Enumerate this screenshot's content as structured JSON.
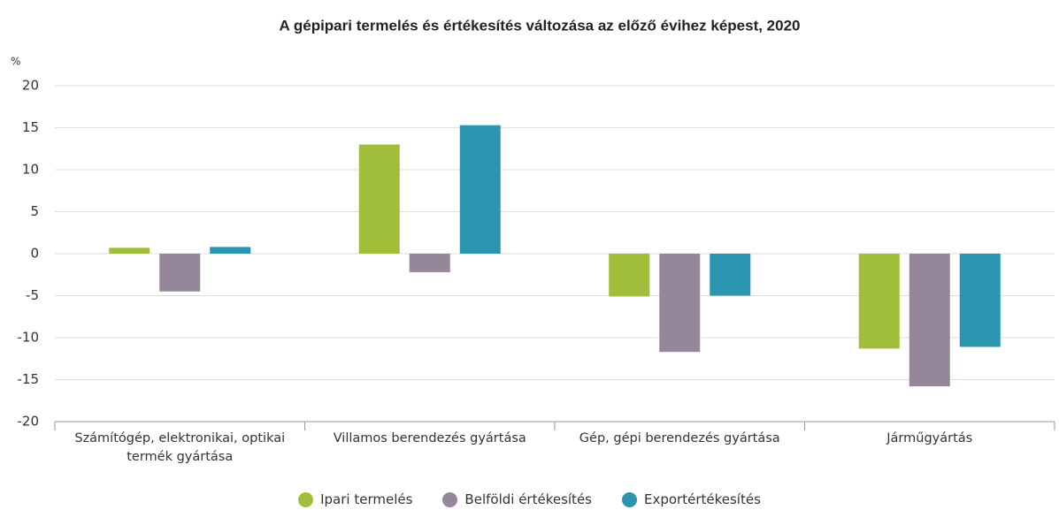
{
  "chart_data": {
    "type": "bar",
    "title": "A gépipari termelés és értékesítés változása az előző évihez képest, 2020",
    "y_label": "%",
    "categories": [
      "Számítógép, elektronikai, optikai termék gyártása",
      "Villamos berendezés gyártása",
      "Gép, gépi berendezés gyártása",
      "Járműgyártás"
    ],
    "series": [
      {
        "name": "Ipari termelés",
        "color": "#a0be3a",
        "values": [
          0.7,
          13.0,
          -5.1,
          -11.3
        ]
      },
      {
        "name": "Belföldi értékesítés",
        "color": "#958699",
        "values": [
          -4.5,
          -2.2,
          -11.7,
          -15.8
        ]
      },
      {
        "name": "Exportértékesítés",
        "color": "#2b95b0",
        "values": [
          0.8,
          15.3,
          -5.0,
          -11.1
        ]
      }
    ],
    "ylim": [
      -20,
      20
    ],
    "yticks": [
      -20,
      -15,
      -10,
      -5,
      0,
      5,
      10,
      15,
      20
    ],
    "grid": true,
    "legend": "bottom"
  }
}
